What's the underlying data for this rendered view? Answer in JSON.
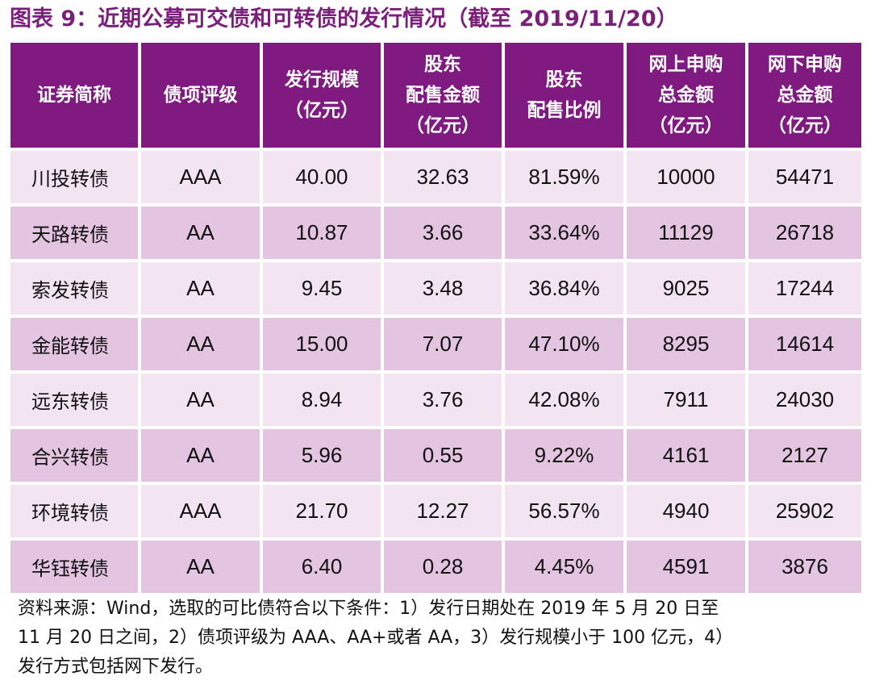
{
  "title": "图表 9：近期公募可交债和可转债的发行情况（截至 2019/11/20）",
  "colors": {
    "header_bg": "#7f1a80",
    "title": "#7a1f7a",
    "row_light": "#f3e4f2",
    "row_dark": "#e3c4e1"
  },
  "table": {
    "headers": [
      [
        "证券简称"
      ],
      [
        "债项评级"
      ],
      [
        "发行规模",
        "（亿元）"
      ],
      [
        "股东",
        "配售金额",
        "（亿元）"
      ],
      [
        "股东",
        "配售比例"
      ],
      [
        "网上申购",
        "总金额",
        "（亿元）"
      ],
      [
        "网下申购",
        "总金额",
        "（亿元）"
      ]
    ],
    "rows": [
      [
        "川投转债",
        "AAA",
        "40.00",
        "32.63",
        "81.59%",
        "10000",
        "54471"
      ],
      [
        "天路转债",
        "AA",
        "10.87",
        "3.66",
        "33.64%",
        "11129",
        "26718"
      ],
      [
        "索发转债",
        "AA",
        "9.45",
        "3.48",
        "36.84%",
        "9025",
        "17244"
      ],
      [
        "金能转债",
        "AA",
        "15.00",
        "7.07",
        "47.10%",
        "8295",
        "14614"
      ],
      [
        "远东转债",
        "AA",
        "8.94",
        "3.76",
        "42.08%",
        "7911",
        "24030"
      ],
      [
        "合兴转债",
        "AA",
        "5.96",
        "0.55",
        "9.22%",
        "4161",
        "2127"
      ],
      [
        "环境转债",
        "AAA",
        "21.70",
        "12.27",
        "56.57%",
        "4940",
        "25902"
      ],
      [
        "华钰转债",
        "AA",
        "6.40",
        "0.28",
        "4.45%",
        "4591",
        "3876"
      ]
    ]
  },
  "footnote": {
    "lines": [
      "资料来源：Wind，选取的可比债符合以下条件：1）发行日期处在 2019 年 5 月 20 日至",
      "11 月 20 日之间，2）债项评级为 AAA、AA+或者 AA，3）发行规模小于 100 亿元，4）",
      "发行方式包括网下发行。"
    ]
  }
}
